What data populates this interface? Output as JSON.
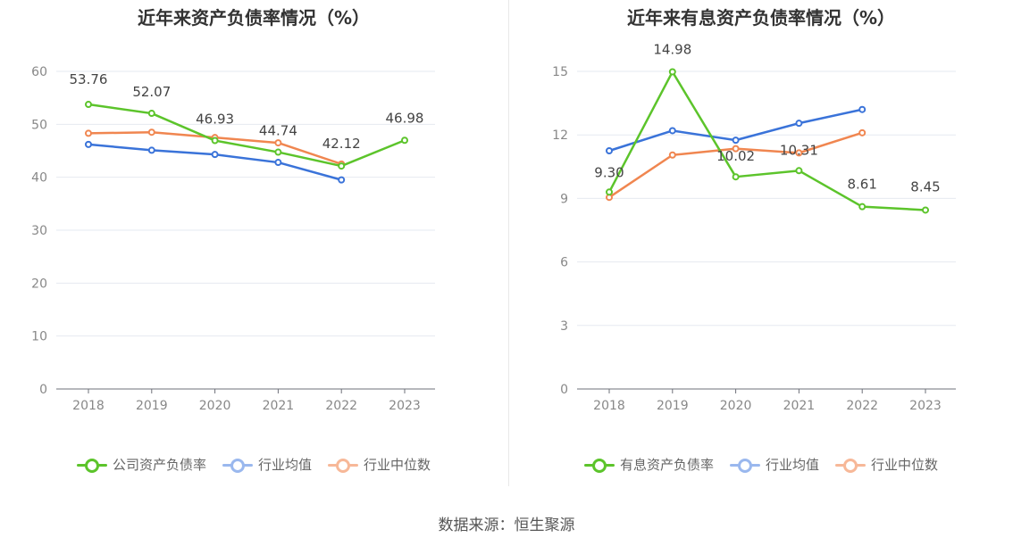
{
  "charts": [
    {
      "title": "近年来资产负债率情况（%）",
      "chart_data": {
        "type": "line",
        "title": "近年来资产负债率情况（%）",
        "categories": [
          "2018",
          "2019",
          "2020",
          "2021",
          "2022",
          "2023"
        ],
        "ylim": [
          0,
          60
        ],
        "yticks": [
          0,
          10,
          20,
          30,
          40,
          50,
          60
        ],
        "series": [
          {
            "name": "公司资产负债率",
            "color": "#5cc42b",
            "values": [
              53.76,
              52.07,
              46.93,
              44.74,
              42.12,
              46.98
            ],
            "labels": [
              "53.76",
              "52.07",
              "46.93",
              "44.74",
              "42.12",
              "46.98"
            ],
            "show_labels": true
          },
          {
            "name": "行业均值",
            "color": "#3a73d9",
            "values": [
              46.2,
              45.1,
              44.3,
              42.8,
              39.5,
              null
            ],
            "show_labels": false
          },
          {
            "name": "行业中位数",
            "color": "#f08650",
            "values": [
              48.3,
              48.5,
              47.5,
              46.5,
              42.5,
              null
            ],
            "show_labels": false
          }
        ]
      },
      "legend": [
        {
          "label": "公司资产负债率",
          "line_color": "#5cc42b",
          "circle_color": "#5cc42b"
        },
        {
          "label": "行业均值",
          "line_color": "#9ab8ee",
          "circle_color": "#9ab8ee"
        },
        {
          "label": "行业中位数",
          "line_color": "#f7b898",
          "circle_color": "#f7b898"
        }
      ]
    },
    {
      "title": "近年来有息资产负债率情况（%）",
      "chart_data": {
        "type": "line",
        "title": "近年来有息资产负债率情况（%）",
        "categories": [
          "2018",
          "2019",
          "2020",
          "2021",
          "2022",
          "2023"
        ],
        "ylim": [
          0,
          15
        ],
        "yticks": [
          0,
          3,
          6,
          9,
          12,
          15
        ],
        "series": [
          {
            "name": "有息资产负债率",
            "color": "#5cc42b",
            "values": [
              9.3,
              14.98,
              10.02,
              10.31,
              8.61,
              8.45
            ],
            "labels": [
              "9.30",
              "14.98",
              "10.02",
              "10.31",
              "8.61",
              "8.45"
            ],
            "show_labels": true
          },
          {
            "name": "行业均值",
            "color": "#3a73d9",
            "values": [
              11.25,
              12.2,
              11.75,
              12.55,
              13.2,
              null
            ],
            "show_labels": false
          },
          {
            "name": "行业中位数",
            "color": "#f08650",
            "values": [
              9.05,
              11.05,
              11.35,
              11.15,
              12.1,
              null
            ],
            "show_labels": false
          }
        ]
      },
      "legend": [
        {
          "label": "有息资产负债率",
          "line_color": "#5cc42b",
          "circle_color": "#5cc42b"
        },
        {
          "label": "行业均值",
          "line_color": "#9ab8ee",
          "circle_color": "#9ab8ee"
        },
        {
          "label": "行业中位数",
          "line_color": "#f7b898",
          "circle_color": "#f7b898"
        }
      ]
    }
  ],
  "source": "数据来源：恒生聚源"
}
